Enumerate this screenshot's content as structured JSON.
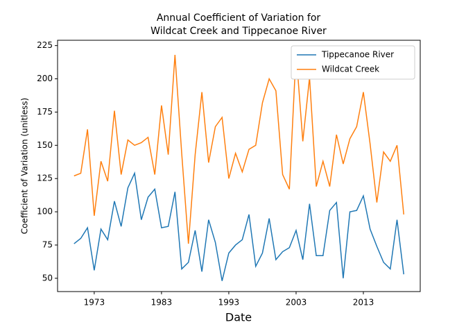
{
  "chart_data": {
    "type": "line",
    "title": [
      "Annual Coefficient of Variation for",
      "Wildcat Creek and Tippecanoe River"
    ],
    "x_label": "Date",
    "y_label": "Coefficient of Variation (unitless)",
    "x": [
      1970,
      1971,
      1972,
      1973,
      1974,
      1975,
      1976,
      1977,
      1978,
      1979,
      1980,
      1981,
      1982,
      1983,
      1984,
      1985,
      1986,
      1987,
      1988,
      1989,
      1990,
      1991,
      1992,
      1993,
      1994,
      1995,
      1996,
      1997,
      1998,
      1999,
      2000,
      2001,
      2002,
      2003,
      2004,
      2005,
      2006,
      2007,
      2008,
      2009,
      2010,
      2011,
      2012,
      2013,
      2014,
      2015,
      2016,
      2017,
      2018,
      2019
    ],
    "series": [
      {
        "name": "Tippecanoe River",
        "color": "#1f77b4",
        "values": [
          76,
          80,
          88,
          56,
          87,
          79,
          108,
          89,
          118,
          129,
          94,
          111,
          117,
          88,
          89,
          115,
          57,
          62,
          86,
          55,
          94,
          77,
          48,
          69,
          75,
          79,
          98,
          59,
          69,
          95,
          64,
          70,
          73,
          86,
          64,
          106,
          67,
          67,
          101,
          107,
          50,
          100,
          101,
          112,
          87,
          74,
          62,
          57,
          94,
          53
        ]
      },
      {
        "name": "Wildcat Creek",
        "color": "#ff7f0e",
        "values": [
          127,
          129,
          162,
          97,
          138,
          123,
          176,
          128,
          154,
          150,
          152,
          156,
          128,
          180,
          143,
          218,
          144,
          76,
          143,
          190,
          137,
          164,
          171,
          125,
          144,
          130,
          147,
          150,
          182,
          200,
          191,
          128,
          117,
          220,
          153,
          201,
          119,
          138,
          119,
          158,
          136,
          155,
          164,
          190,
          151,
          107,
          145,
          138,
          150,
          98
        ]
      }
    ],
    "xlim": [
      1967.55,
      2021.45
    ],
    "xticks": [
      1973,
      1983,
      1993,
      2003,
      2013
    ],
    "ylim": [
      40,
      229
    ],
    "yticks": [
      50,
      75,
      100,
      125,
      150,
      175,
      200,
      225
    ],
    "legend": "upper right"
  }
}
